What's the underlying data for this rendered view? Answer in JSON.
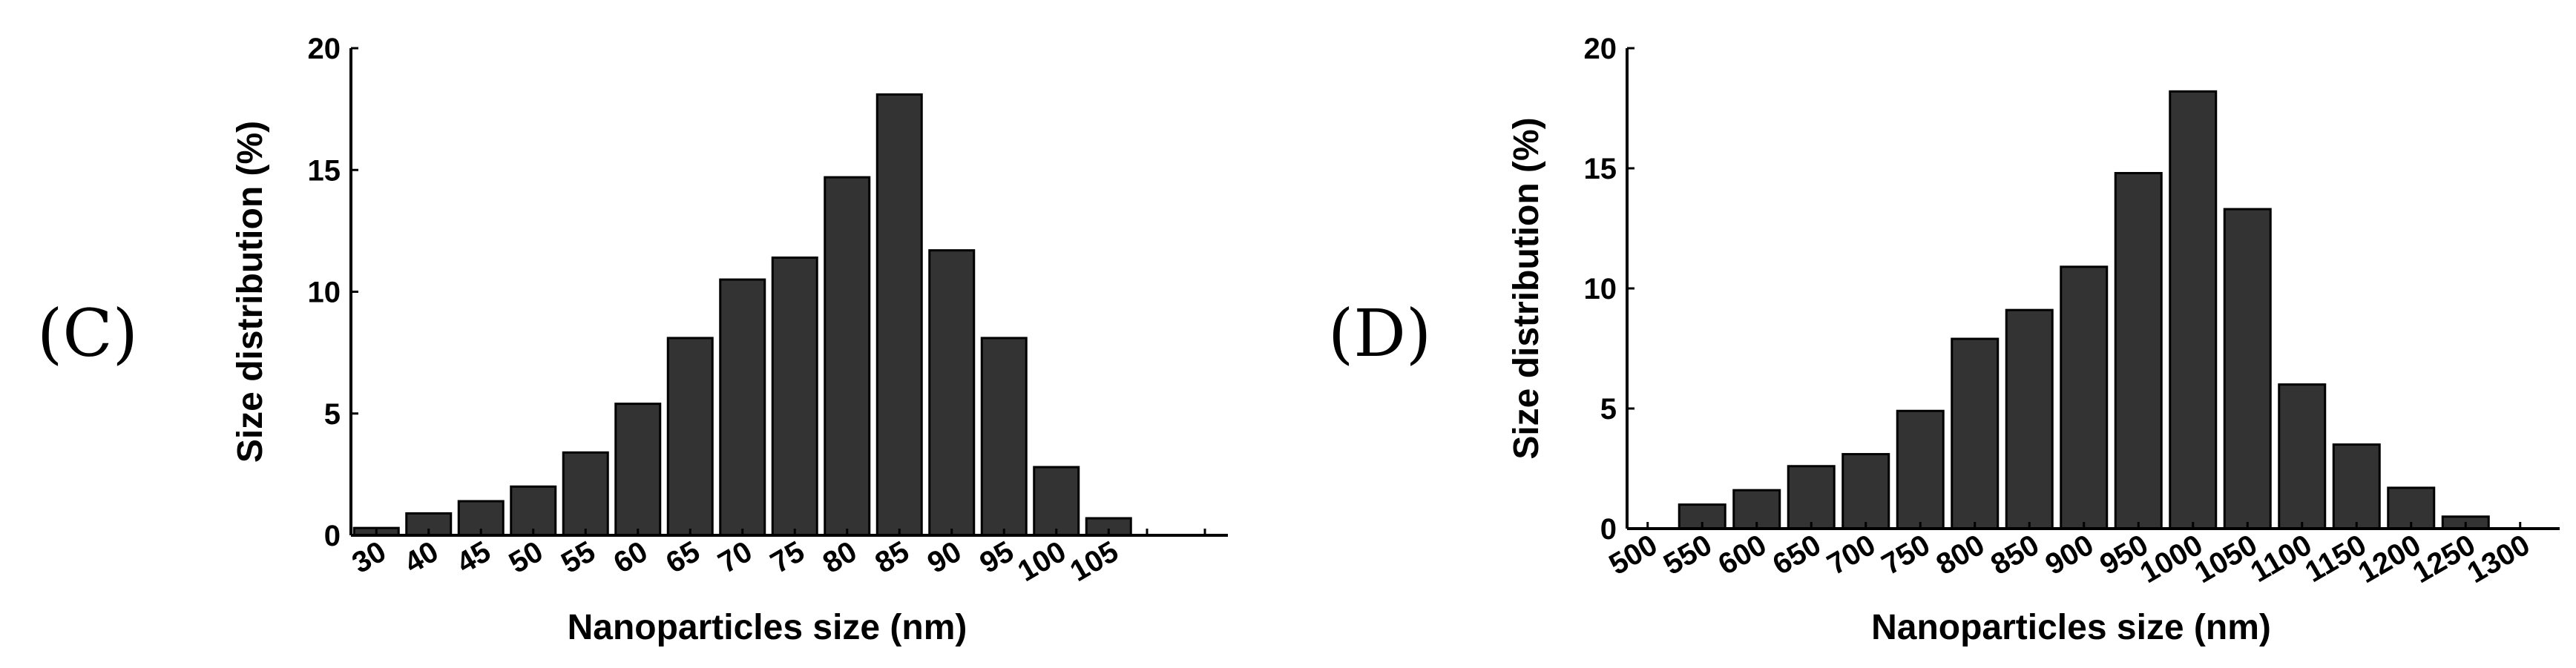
{
  "chart_data": [
    {
      "type": "bar",
      "panel_label": "(C)",
      "xlabel": "Nanoparticles size (nm)",
      "ylabel": "Size distribution (%)",
      "categories": [
        "30",
        "40",
        "45",
        "50",
        "55",
        "60",
        "65",
        "70",
        "75",
        "80",
        "85",
        "90",
        "95",
        "100",
        "105"
      ],
      "values": [
        0.3,
        0.9,
        1.4,
        2.0,
        3.4,
        5.4,
        8.1,
        10.5,
        11.4,
        14.7,
        18.1,
        11.7,
        8.1,
        2.8,
        0.7
      ],
      "ylim": [
        0,
        20
      ],
      "yticks": [
        "0",
        "5",
        "10",
        "15",
        "20"
      ],
      "bar_color": "#333333",
      "grid": false
    },
    {
      "type": "bar",
      "panel_label": "(D)",
      "xlabel": "Nanoparticles size (nm)",
      "ylabel": "Size distribution (%)",
      "categories": [
        "500",
        "550",
        "600",
        "650",
        "700",
        "750",
        "800",
        "850",
        "900",
        "950",
        "1000",
        "1050",
        "1100",
        "1150",
        "1200",
        "1250",
        "1300"
      ],
      "values": [
        null,
        1.0,
        1.6,
        2.6,
        3.1,
        4.9,
        7.9,
        9.1,
        10.9,
        14.8,
        18.2,
        13.3,
        6.0,
        3.5,
        1.7,
        0.5,
        null
      ],
      "ylim": [
        0,
        20
      ],
      "yticks": [
        "0",
        "5",
        "10",
        "15",
        "20"
      ],
      "bar_color": "#333333",
      "grid": false
    }
  ]
}
